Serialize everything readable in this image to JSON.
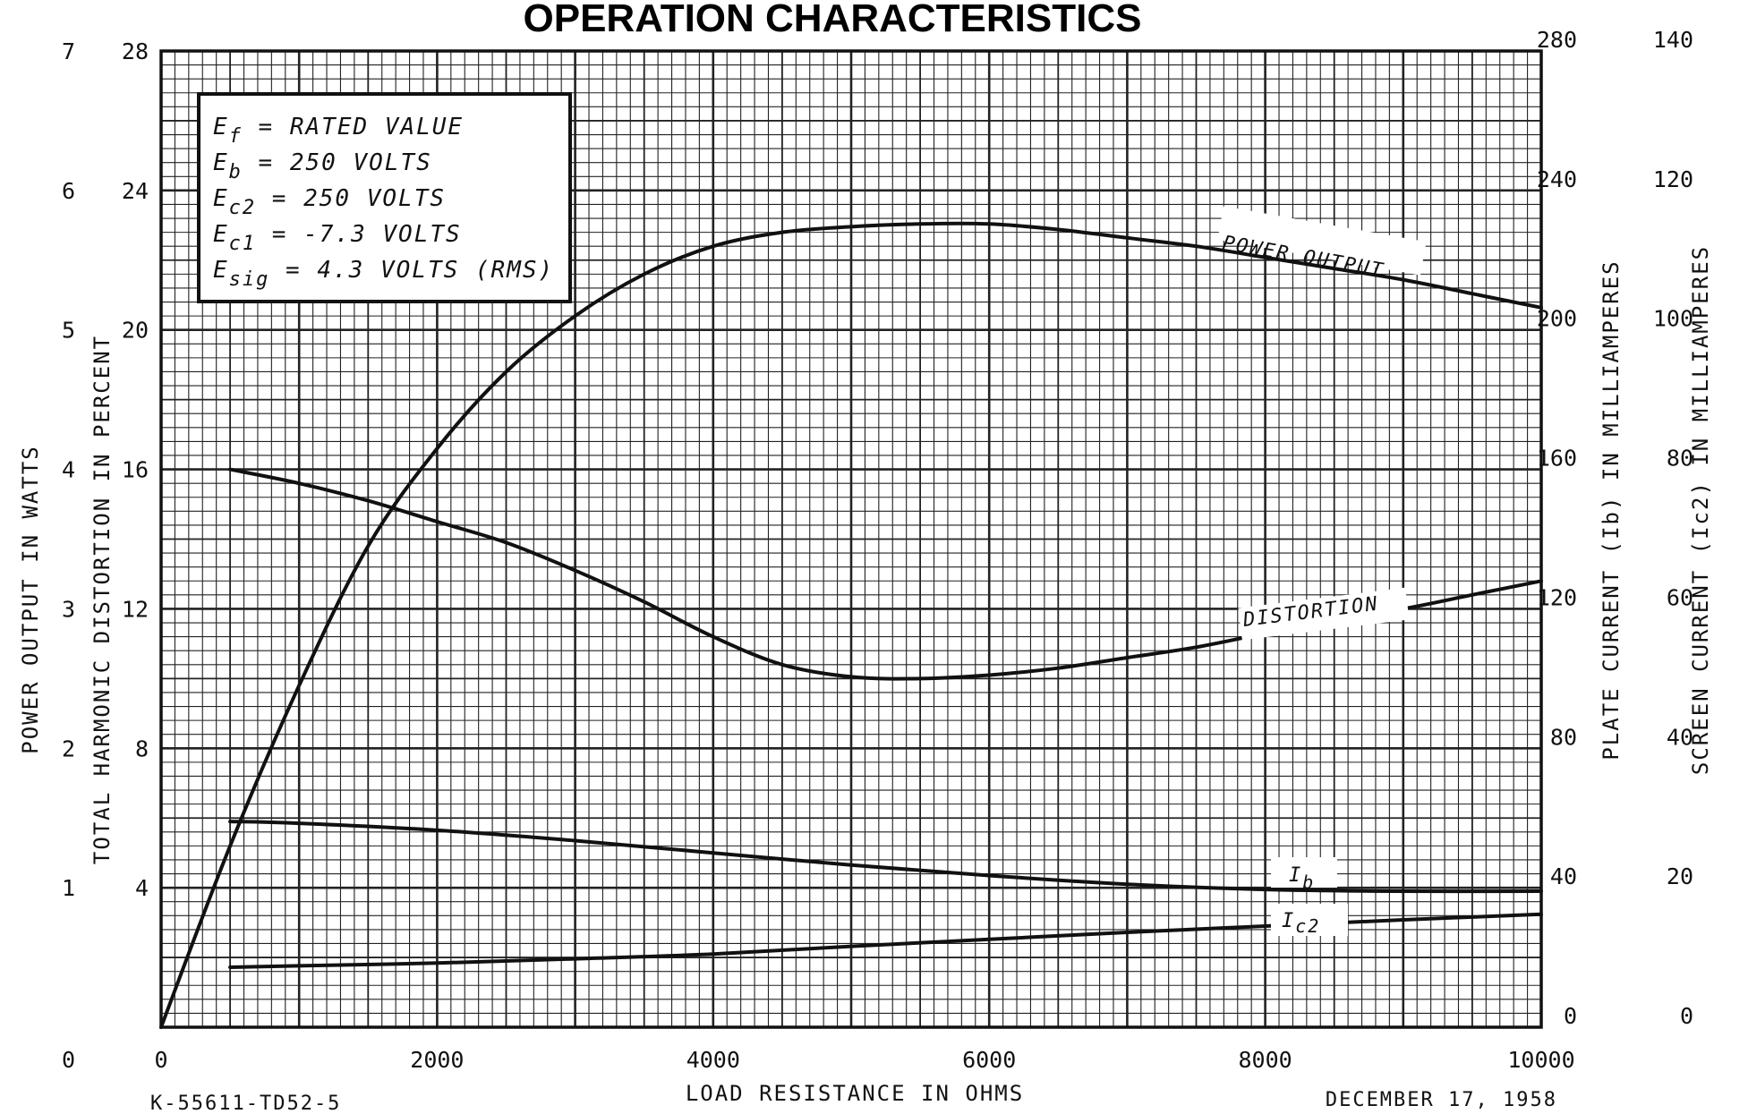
{
  "chart_data": {
    "type": "line",
    "title": "OPERATION CHARACTERISTICS",
    "xlabel": "LOAD RESISTANCE IN OHMS",
    "xlim": [
      0,
      10000
    ],
    "x_ticks": [
      {
        "value": 0,
        "label": "0"
      },
      {
        "value": 2000,
        "label": "2000"
      },
      {
        "value": 4000,
        "label": "4000"
      },
      {
        "value": 6000,
        "label": "6000"
      },
      {
        "value": 8000,
        "label": "8000"
      },
      {
        "value": 10000,
        "label": "10000"
      }
    ],
    "axes": {
      "power": {
        "label": "POWER OUTPUT IN WATTS",
        "lim": [
          0,
          7
        ],
        "ticks": [
          "0",
          "1",
          "2",
          "3",
          "4",
          "5",
          "6",
          "7"
        ]
      },
      "distortion": {
        "label": "TOTAL HARMONIC DISTORTION IN PERCENT",
        "lim": [
          0,
          28
        ],
        "ticks": [
          "4",
          "8",
          "12",
          "16",
          "20",
          "24",
          "28"
        ]
      },
      "plate": {
        "label": "PLATE CURRENT (Ib) IN MILLIAMPERES",
        "lim": [
          0,
          280
        ],
        "ticks": [
          "0",
          "40",
          "80",
          "120",
          "160",
          "200",
          "240",
          "280"
        ]
      },
      "screen": {
        "label": "SCREEN CURRENT (Ic2) IN MILLIAMPERES",
        "lim": [
          0,
          140
        ],
        "ticks": [
          "0",
          "20",
          "40",
          "60",
          "80",
          "100",
          "120",
          "140"
        ]
      }
    },
    "grid": true,
    "series": [
      {
        "name": "POWER OUTPUT",
        "axis": "power",
        "x": [
          0,
          500,
          1000,
          1500,
          2000,
          2500,
          3000,
          3500,
          4000,
          4500,
          5000,
          5500,
          6000,
          6500,
          7000,
          7500,
          8000,
          8500,
          9000,
          9500,
          10000
        ],
        "y": [
          0,
          1.3,
          2.45,
          3.45,
          4.15,
          4.7,
          5.1,
          5.4,
          5.6,
          5.7,
          5.74,
          5.76,
          5.76,
          5.72,
          5.66,
          5.6,
          5.52,
          5.44,
          5.36,
          5.26,
          5.16
        ]
      },
      {
        "name": "DISTORTION",
        "axis": "distortion",
        "x": [
          500,
          1000,
          1500,
          2000,
          2500,
          3000,
          3500,
          4000,
          4500,
          5000,
          5500,
          6000,
          6500,
          7000,
          7500,
          8000,
          8500,
          9000,
          9500,
          10000
        ],
        "y": [
          16,
          15.6,
          15.1,
          14.5,
          13.9,
          13.1,
          12.2,
          11.2,
          10.4,
          10.05,
          10,
          10.1,
          10.3,
          10.6,
          10.9,
          11.3,
          11.7,
          12.0,
          12.4,
          12.8
        ]
      },
      {
        "name": "Ib",
        "axis": "plate",
        "x": [
          500,
          1000,
          2000,
          3000,
          4000,
          5000,
          6000,
          7000,
          8000,
          9000,
          10000
        ],
        "y": [
          59,
          58.5,
          56.5,
          53.5,
          50,
          46.5,
          43.5,
          41,
          39.5,
          39,
          39
        ]
      },
      {
        "name": "Ic2",
        "axis": "screen",
        "x": [
          500,
          1000,
          2000,
          3000,
          4000,
          5000,
          6000,
          7000,
          8000,
          9000,
          10000
        ],
        "y": [
          8.6,
          8.8,
          9.2,
          9.8,
          10.5,
          11.6,
          12.6,
          13.6,
          14.5,
          15.4,
          16.2
        ]
      }
    ],
    "conditions": [
      {
        "sym": "E",
        "sub": "f",
        "text": " = RATED VALUE"
      },
      {
        "sym": "E",
        "sub": "b",
        "text": " = 250 VOLTS"
      },
      {
        "sym": "E",
        "sub": "c2",
        "text": " = 250 VOLTS"
      },
      {
        "sym": "E",
        "sub": "c1",
        "text": " = -7.3 VOLTS"
      },
      {
        "sym": "E",
        "sub": "sig",
        "text": " = 4.3 VOLTS (RMS)"
      }
    ],
    "curve_labels": {
      "power": "POWER OUTPUT",
      "distortion": "DISTORTION",
      "ib_main": "I",
      "ib_sub": "b",
      "ic2_main": "I",
      "ic2_sub": "c2"
    },
    "footnotes": {
      "left": "K-55611-TD52-5",
      "right": "DECEMBER 17, 1958"
    }
  }
}
